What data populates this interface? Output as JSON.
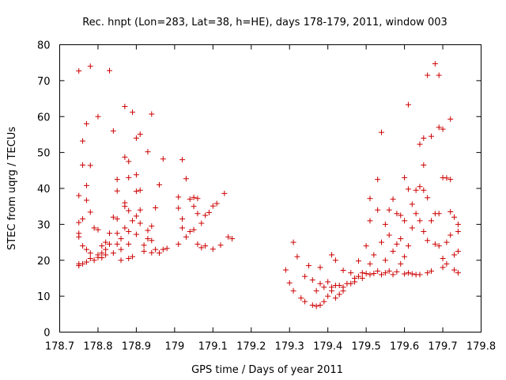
{
  "chart_data": {
    "type": "scatter",
    "title": "Rec. hnpt (Lon=283, Lat=38, h=HE), days 178-179, 2011, window 003",
    "xlabel": "GPS time / Days of year 2011",
    "ylabel": "STEC from uqrg / TECUs",
    "xlim": [
      178.7,
      179.8
    ],
    "ylim": [
      0,
      80
    ],
    "xticks": [
      178.7,
      178.8,
      178.9,
      179,
      179.1,
      179.2,
      179.3,
      179.4,
      179.5,
      179.6,
      179.7,
      179.8
    ],
    "xtick_labels": [
      "178.7",
      "178.8",
      "178.9",
      "179",
      "179.1",
      "179.2",
      "179.3",
      "179.4",
      "179.5",
      "179.6",
      "179.7",
      "179.8"
    ],
    "yticks": [
      0,
      10,
      20,
      30,
      40,
      50,
      60,
      70,
      80
    ],
    "ytick_labels": [
      "0",
      "10",
      "20",
      "30",
      "40",
      "50",
      "60",
      "70",
      "80"
    ],
    "grid": false,
    "marker": "+",
    "color": "#cc0000",
    "points": [
      [
        178.75,
        72.7
      ],
      [
        178.75,
        38
      ],
      [
        178.75,
        30.5
      ],
      [
        178.75,
        27.5
      ],
      [
        178.75,
        26.5
      ],
      [
        178.75,
        19
      ],
      [
        178.75,
        18.5
      ],
      [
        178.76,
        53.2
      ],
      [
        178.76,
        46.5
      ],
      [
        178.76,
        31.5
      ],
      [
        178.76,
        24
      ],
      [
        178.76,
        19
      ],
      [
        178.77,
        36.7
      ],
      [
        178.77,
        58
      ],
      [
        178.77,
        40.8
      ],
      [
        178.77,
        23
      ],
      [
        178.77,
        19.5
      ],
      [
        178.78,
        46.4
      ],
      [
        178.78,
        33.4
      ],
      [
        178.78,
        22
      ],
      [
        178.78,
        20.5
      ],
      [
        178.78,
        74
      ],
      [
        178.79,
        29
      ],
      [
        178.79,
        20
      ],
      [
        178.8,
        60
      ],
      [
        178.8,
        28.5
      ],
      [
        178.8,
        21.5
      ],
      [
        178.8,
        20.8
      ],
      [
        178.81,
        24
      ],
      [
        178.81,
        22
      ],
      [
        178.81,
        20.7
      ],
      [
        178.82,
        25
      ],
      [
        178.82,
        23
      ],
      [
        178.82,
        21.5
      ],
      [
        178.83,
        72.8
      ],
      [
        178.83,
        27.5
      ],
      [
        178.83,
        24.5
      ],
      [
        178.84,
        56
      ],
      [
        178.84,
        32
      ],
      [
        178.84,
        22
      ],
      [
        178.85,
        42.5
      ],
      [
        178.85,
        39.3
      ],
      [
        178.85,
        31.5
      ],
      [
        178.85,
        27.5
      ],
      [
        178.85,
        24.5
      ],
      [
        178.86,
        26
      ],
      [
        178.86,
        23
      ],
      [
        178.86,
        20
      ],
      [
        178.87,
        62.8
      ],
      [
        178.87,
        48.7
      ],
      [
        178.87,
        36
      ],
      [
        178.87,
        35
      ],
      [
        178.87,
        29
      ],
      [
        178.88,
        47.5
      ],
      [
        178.88,
        43
      ],
      [
        178.88,
        33.8
      ],
      [
        178.88,
        28
      ],
      [
        178.88,
        24.5
      ],
      [
        178.88,
        20.5
      ],
      [
        178.89,
        61.2
      ],
      [
        178.89,
        31
      ],
      [
        178.89,
        21
      ],
      [
        178.9,
        54
      ],
      [
        178.9,
        43.8
      ],
      [
        178.9,
        39.2
      ],
      [
        178.9,
        32.3
      ],
      [
        178.9,
        27.2
      ],
      [
        178.91,
        55.1
      ],
      [
        178.91,
        39.5
      ],
      [
        178.91,
        34
      ],
      [
        178.91,
        30.3
      ],
      [
        178.92,
        24.2
      ],
      [
        178.92,
        22.5
      ],
      [
        178.93,
        50.2
      ],
      [
        178.93,
        28.3
      ],
      [
        178.93,
        26
      ],
      [
        178.94,
        60.7
      ],
      [
        178.94,
        29.5
      ],
      [
        178.94,
        25.5
      ],
      [
        178.94,
        22.1
      ],
      [
        178.95,
        34.6
      ],
      [
        178.95,
        23
      ],
      [
        178.96,
        41
      ],
      [
        178.96,
        22
      ],
      [
        178.97,
        48.2
      ],
      [
        178.97,
        23
      ],
      [
        178.98,
        23.3
      ],
      [
        179.01,
        37.6
      ],
      [
        179.01,
        34.5
      ],
      [
        179.01,
        24.5
      ],
      [
        179.02,
        48
      ],
      [
        179.02,
        31.5
      ],
      [
        179.02,
        29
      ],
      [
        179.03,
        42.7
      ],
      [
        179.03,
        26.5
      ],
      [
        179.04,
        37
      ],
      [
        179.04,
        28
      ],
      [
        179.05,
        37.5
      ],
      [
        179.05,
        35
      ],
      [
        179.05,
        28.5
      ],
      [
        179.06,
        37.2
      ],
      [
        179.06,
        33
      ],
      [
        179.06,
        24.5
      ],
      [
        179.07,
        30.3
      ],
      [
        179.07,
        23.5
      ],
      [
        179.08,
        32.5
      ],
      [
        179.08,
        24
      ],
      [
        179.09,
        33.3
      ],
      [
        179.1,
        35.1
      ],
      [
        179.1,
        23.1
      ],
      [
        179.11,
        35.8
      ],
      [
        179.12,
        24.2
      ],
      [
        179.13,
        38.6
      ],
      [
        179.14,
        26.5
      ],
      [
        179.15,
        26
      ],
      [
        179.29,
        17.3
      ],
      [
        179.3,
        13.7
      ],
      [
        179.31,
        25
      ],
      [
        179.31,
        11.5
      ],
      [
        179.32,
        21
      ],
      [
        179.33,
        9.5
      ],
      [
        179.34,
        15.5
      ],
      [
        179.34,
        8.5
      ],
      [
        179.35,
        18.5
      ],
      [
        179.36,
        14.5
      ],
      [
        179.36,
        7.5
      ],
      [
        179.37,
        11.5
      ],
      [
        179.37,
        7.2
      ],
      [
        179.38,
        18
      ],
      [
        179.38,
        13.5
      ],
      [
        179.38,
        7.5
      ],
      [
        179.39,
        12.5
      ],
      [
        179.39,
        8.5
      ],
      [
        179.4,
        14
      ],
      [
        179.4,
        10
      ],
      [
        179.41,
        21.5
      ],
      [
        179.41,
        12.5
      ],
      [
        179.41,
        11.5
      ],
      [
        179.42,
        20
      ],
      [
        179.42,
        13
      ],
      [
        179.42,
        9.5
      ],
      [
        179.43,
        13
      ],
      [
        179.43,
        10.5
      ],
      [
        179.44,
        17.2
      ],
      [
        179.44,
        12.5
      ],
      [
        179.44,
        11.5
      ],
      [
        179.45,
        13.5
      ],
      [
        179.46,
        16.5
      ],
      [
        179.46,
        13.5
      ],
      [
        179.47,
        15
      ],
      [
        179.47,
        14
      ],
      [
        179.48,
        19.8
      ],
      [
        179.48,
        15.5
      ],
      [
        179.49,
        16.5
      ],
      [
        179.49,
        15
      ],
      [
        179.5,
        24
      ],
      [
        179.5,
        16.3
      ],
      [
        179.51,
        37.2
      ],
      [
        179.51,
        31
      ],
      [
        179.51,
        19
      ],
      [
        179.51,
        16
      ],
      [
        179.52,
        21.5
      ],
      [
        179.52,
        16.3
      ],
      [
        179.53,
        42.5
      ],
      [
        179.53,
        34
      ],
      [
        179.53,
        17
      ],
      [
        179.54,
        55.6
      ],
      [
        179.54,
        25
      ],
      [
        179.54,
        16
      ],
      [
        179.55,
        30
      ],
      [
        179.55,
        20
      ],
      [
        179.55,
        16.5
      ],
      [
        179.56,
        34
      ],
      [
        179.56,
        27
      ],
      [
        179.56,
        17
      ],
      [
        179.57,
        37
      ],
      [
        179.57,
        22.5
      ],
      [
        179.57,
        16
      ],
      [
        179.58,
        33
      ],
      [
        179.58,
        24.5
      ],
      [
        179.58,
        16.8
      ],
      [
        179.59,
        32.5
      ],
      [
        179.59,
        26
      ],
      [
        179.59,
        19
      ],
      [
        179.6,
        43
      ],
      [
        179.6,
        31
      ],
      [
        179.6,
        21
      ],
      [
        179.6,
        16.2
      ],
      [
        179.61,
        63.3
      ],
      [
        179.61,
        39.8
      ],
      [
        179.61,
        24
      ],
      [
        179.61,
        16.5
      ],
      [
        179.62,
        35.6
      ],
      [
        179.62,
        29
      ],
      [
        179.62,
        16.2
      ],
      [
        179.63,
        39.5
      ],
      [
        179.63,
        33
      ],
      [
        179.63,
        16
      ],
      [
        179.64,
        52.3
      ],
      [
        179.64,
        40.5
      ],
      [
        179.64,
        31
      ],
      [
        179.64,
        16
      ],
      [
        179.65,
        54
      ],
      [
        179.65,
        46.5
      ],
      [
        179.65,
        39.5
      ],
      [
        179.65,
        28
      ],
      [
        179.66,
        71.5
      ],
      [
        179.66,
        37.4
      ],
      [
        179.66,
        25.5
      ],
      [
        179.66,
        16.5
      ],
      [
        179.67,
        54.5
      ],
      [
        179.67,
        31
      ],
      [
        179.67,
        17
      ],
      [
        179.68,
        74.7
      ],
      [
        179.68,
        33
      ],
      [
        179.68,
        24.5
      ],
      [
        179.69,
        71.5
      ],
      [
        179.69,
        57
      ],
      [
        179.69,
        33
      ],
      [
        179.69,
        24
      ],
      [
        179.7,
        56.5
      ],
      [
        179.7,
        43
      ],
      [
        179.7,
        20.5
      ],
      [
        179.7,
        18
      ],
      [
        179.71,
        42.9
      ],
      [
        179.71,
        25
      ],
      [
        179.71,
        19
      ],
      [
        179.72,
        59.3
      ],
      [
        179.72,
        42.5
      ],
      [
        179.72,
        33.5
      ],
      [
        179.72,
        27
      ],
      [
        179.73,
        32
      ],
      [
        179.73,
        21.5
      ],
      [
        179.73,
        17.3
      ],
      [
        179.74,
        30
      ],
      [
        179.74,
        28
      ],
      [
        179.74,
        22.5
      ],
      [
        179.74,
        16.5
      ]
    ]
  }
}
